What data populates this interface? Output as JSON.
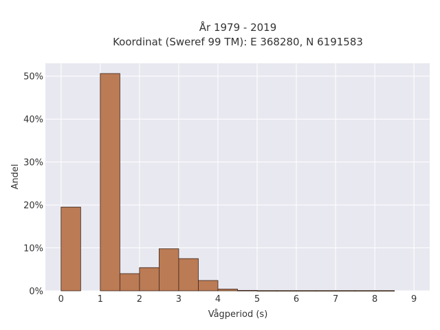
{
  "chart_data": {
    "type": "bar",
    "title_lines": [
      "År 1979 - 2019",
      "Koordinat (Sweref 99 TM): E 368280, N 6191583"
    ],
    "xlabel": "Vågperiod (s)",
    "ylabel": "Andel",
    "xlim": [
      -0.4,
      9.4
    ],
    "ylim": [
      0,
      53
    ],
    "x_ticks": [
      0,
      1,
      2,
      3,
      4,
      5,
      6,
      7,
      8,
      9
    ],
    "y_ticks": [
      {
        "value": 0,
        "label": "0%"
      },
      {
        "value": 10,
        "label": "10%"
      },
      {
        "value": 20,
        "label": "20%"
      },
      {
        "value": 30,
        "label": "30%"
      },
      {
        "value": 40,
        "label": "40%"
      },
      {
        "value": 50,
        "label": "50%"
      }
    ],
    "bins": [
      {
        "x0": 0.0,
        "x1": 0.5,
        "value": 19.5
      },
      {
        "x0": 0.5,
        "x1": 1.0,
        "value": 0
      },
      {
        "x0": 1.0,
        "x1": 1.5,
        "value": 50.6
      },
      {
        "x0": 1.5,
        "x1": 2.0,
        "value": 4.0
      },
      {
        "x0": 2.0,
        "x1": 2.5,
        "value": 5.4
      },
      {
        "x0": 2.5,
        "x1": 3.0,
        "value": 9.8
      },
      {
        "x0": 3.0,
        "x1": 3.5,
        "value": 7.5
      },
      {
        "x0": 3.5,
        "x1": 4.0,
        "value": 2.4
      },
      {
        "x0": 4.0,
        "x1": 4.5,
        "value": 0.4
      },
      {
        "x0": 4.5,
        "x1": 5.0,
        "value": 0.1
      },
      {
        "x0": 5.0,
        "x1": 5.5,
        "value": 0.05
      },
      {
        "x0": 5.5,
        "x1": 6.0,
        "value": 0.05
      },
      {
        "x0": 6.0,
        "x1": 6.5,
        "value": 0.05
      },
      {
        "x0": 6.5,
        "x1": 7.0,
        "value": 0.05
      },
      {
        "x0": 7.0,
        "x1": 7.5,
        "value": 0.05
      },
      {
        "x0": 7.5,
        "x1": 8.0,
        "value": 0.05
      },
      {
        "x0": 8.0,
        "x1": 8.5,
        "value": 0.05
      }
    ],
    "grid": true,
    "bar_color": "#bb7b55",
    "bar_edge_color": "#3a2418",
    "plot_background": "#e8e8f0"
  }
}
